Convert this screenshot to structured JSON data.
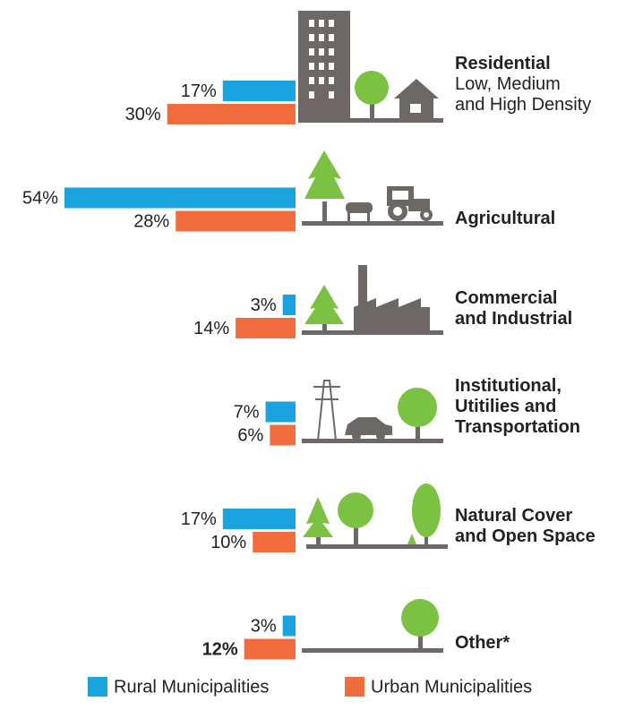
{
  "chart_data": {
    "type": "bar",
    "categories": [
      "Residential",
      "Agricultural",
      "Commercial\nand Industrial",
      "Institutional,\nUtitilies and\nTransportation",
      "Natural Cover\nand Open Space",
      "Other*"
    ],
    "category_notes": [
      "Low, Medium\nand High Density",
      null,
      null,
      null,
      null,
      null
    ],
    "series": [
      {
        "name": "Rural Municipalities",
        "color": "#1ba3e0",
        "values": [
          17,
          54,
          3,
          7,
          17,
          3
        ],
        "value_labels": [
          "17%",
          "54%",
          "3%",
          "7%",
          "17%",
          "3%"
        ]
      },
      {
        "name": "Urban Municipalities",
        "color": "#f26d3d",
        "values": [
          30,
          28,
          14,
          6,
          10,
          12
        ],
        "value_labels": [
          "30%",
          "28%",
          "14%",
          "6%",
          "10%",
          "12%"
        ]
      }
    ]
  }
}
